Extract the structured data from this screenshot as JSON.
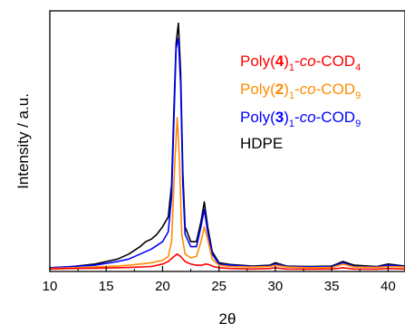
{
  "chart_data": {
    "type": "line",
    "xlabel": "2θ",
    "ylabel": "Intensity / a.u.",
    "xlim": [
      10,
      41.5
    ],
    "ylim": [
      0,
      1.05
    ],
    "x_ticks": [
      "10",
      "15",
      "20",
      "25",
      "30",
      "35",
      "40"
    ],
    "y_ticks_shown": false,
    "grid": false,
    "legend_position": "top-right",
    "series": [
      {
        "name": "Poly(4)1-co-COD4",
        "name_parts": [
          {
            "t": "Poly("
          },
          {
            "t": "4",
            "bold": true
          },
          {
            "t": ")"
          },
          {
            "t": "1",
            "sub": true
          },
          {
            "t": "-"
          },
          {
            "t": "co",
            "italic": true
          },
          {
            "t": "-COD"
          },
          {
            "t": "4",
            "sub": true
          }
        ],
        "color": "#ff0000",
        "x": [
          10,
          12,
          14,
          16,
          17,
          18,
          19,
          20,
          20.5,
          21,
          21.3,
          21.6,
          22,
          22.5,
          23,
          23.5,
          23.8,
          24.1,
          24.5,
          25,
          26,
          28,
          29.5,
          30,
          31,
          33,
          35,
          36,
          37,
          39,
          40,
          41.5
        ],
        "y": [
          0.01,
          0.012,
          0.013,
          0.015,
          0.016,
          0.018,
          0.02,
          0.03,
          0.04,
          0.06,
          0.07,
          0.06,
          0.04,
          0.03,
          0.025,
          0.025,
          0.03,
          0.028,
          0.02,
          0.015,
          0.012,
          0.01,
          0.012,
          0.015,
          0.01,
          0.009,
          0.01,
          0.015,
          0.01,
          0.009,
          0.012,
          0.01
        ]
      },
      {
        "name": "Poly(2)1-co-COD9",
        "name_parts": [
          {
            "t": "Poly("
          },
          {
            "t": "2",
            "bold": true
          },
          {
            "t": ")"
          },
          {
            "t": "1",
            "sub": true
          },
          {
            "t": "-"
          },
          {
            "t": "co",
            "italic": true
          },
          {
            "t": "-COD"
          },
          {
            "t": "9",
            "sub": true
          }
        ],
        "color": "#ff8c00",
        "x": [
          10,
          12,
          14,
          16,
          17,
          18,
          19,
          20,
          20.5,
          20.8,
          21.1,
          21.3,
          21.5,
          21.7,
          22,
          22.5,
          23,
          23.4,
          23.7,
          24,
          24.4,
          25,
          26,
          28,
          29.5,
          30,
          31,
          33,
          35,
          36,
          37,
          39,
          40,
          41.5
        ],
        "y": [
          0.012,
          0.015,
          0.018,
          0.022,
          0.025,
          0.03,
          0.035,
          0.045,
          0.06,
          0.12,
          0.45,
          0.62,
          0.45,
          0.15,
          0.07,
          0.055,
          0.06,
          0.12,
          0.18,
          0.13,
          0.05,
          0.025,
          0.02,
          0.018,
          0.02,
          0.025,
          0.018,
          0.015,
          0.016,
          0.03,
          0.018,
          0.016,
          0.02,
          0.018
        ]
      },
      {
        "name": "Poly(3)1-co-COD9",
        "name_parts": [
          {
            "t": "Poly("
          },
          {
            "t": "3",
            "bold": true
          },
          {
            "t": ")"
          },
          {
            "t": "1",
            "sub": true
          },
          {
            "t": "-"
          },
          {
            "t": "co",
            "italic": true
          },
          {
            "t": "-COD"
          },
          {
            "t": "9",
            "sub": true
          }
        ],
        "color": "#0000ff",
        "x": [
          10,
          12,
          14,
          16,
          17,
          18,
          19,
          20,
          20.5,
          20.8,
          21,
          21.2,
          21.4,
          21.6,
          21.8,
          22,
          22.5,
          23,
          23.4,
          23.7,
          24,
          24.4,
          25,
          26,
          28,
          29.5,
          30,
          31,
          33,
          35,
          36,
          37,
          39,
          40,
          41.5
        ],
        "y": [
          0.015,
          0.02,
          0.025,
          0.04,
          0.05,
          0.07,
          0.09,
          0.12,
          0.16,
          0.3,
          0.6,
          0.9,
          0.94,
          0.75,
          0.35,
          0.15,
          0.1,
          0.1,
          0.18,
          0.25,
          0.16,
          0.07,
          0.03,
          0.025,
          0.02,
          0.022,
          0.03,
          0.02,
          0.018,
          0.02,
          0.035,
          0.02,
          0.018,
          0.025,
          0.02
        ]
      },
      {
        "name": "HDPE",
        "name_parts": [
          {
            "t": "HDPE"
          }
        ],
        "color": "#000000",
        "x": [
          10,
          12,
          14,
          16,
          17,
          18,
          18.5,
          19,
          19.5,
          20,
          20.5,
          20.8,
          21,
          21.2,
          21.4,
          21.6,
          21.8,
          22,
          22.5,
          23,
          23.4,
          23.7,
          24,
          24.4,
          25,
          26,
          28,
          29.5,
          30,
          31,
          33,
          35,
          36,
          37,
          39,
          40,
          41.5
        ],
        "y": [
          0.015,
          0.02,
          0.03,
          0.05,
          0.07,
          0.1,
          0.12,
          0.13,
          0.15,
          0.18,
          0.22,
          0.35,
          0.65,
          0.92,
          1.0,
          0.8,
          0.4,
          0.18,
          0.12,
          0.12,
          0.2,
          0.28,
          0.18,
          0.08,
          0.035,
          0.028,
          0.022,
          0.025,
          0.035,
          0.022,
          0.02,
          0.022,
          0.04,
          0.025,
          0.02,
          0.03,
          0.022
        ]
      }
    ]
  }
}
